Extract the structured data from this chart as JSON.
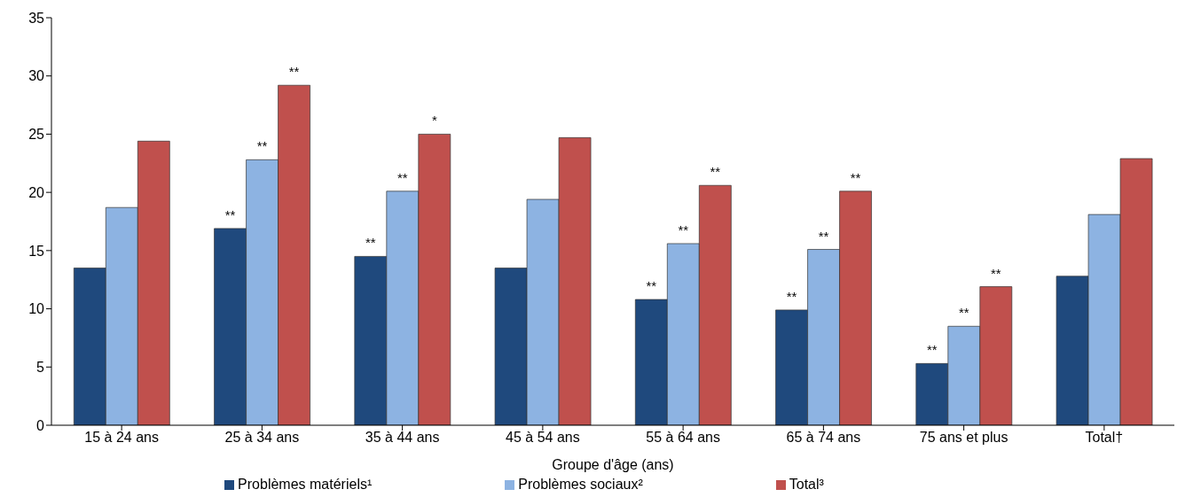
{
  "chart_data": {
    "type": "bar",
    "xlabel": "Groupe d'âge (ans)",
    "categories": [
      "15 à 24 ans",
      "25 à 34 ans",
      "35 à 44 ans",
      "45 à 54 ans",
      "55 à 64 ans",
      "65 à 74 ans",
      "75 ans et plus",
      "Total†"
    ],
    "series": [
      {
        "name": "Problèmes matériels¹",
        "color": "#1f497d",
        "values": [
          13.5,
          16.9,
          14.5,
          13.5,
          10.8,
          9.9,
          5.3,
          12.8
        ],
        "value_labels": [
          null,
          "**",
          "**",
          null,
          "**",
          "**",
          "**",
          null
        ]
      },
      {
        "name": "Problèmes sociaux²",
        "color": "#8db3e2",
        "values": [
          18.7,
          22.8,
          20.1,
          19.4,
          15.6,
          15.1,
          8.5,
          18.1
        ],
        "value_labels": [
          null,
          "**",
          "**",
          null,
          "**",
          "**",
          "**",
          null
        ]
      },
      {
        "name": "Total³",
        "color": "#c0504d",
        "values": [
          24.4,
          29.2,
          25.0,
          24.7,
          20.6,
          20.1,
          11.9,
          22.9
        ],
        "value_labels": [
          null,
          "**",
          "*",
          null,
          "**",
          "**",
          "**",
          null
        ]
      }
    ],
    "ylim": [
      0,
      35
    ],
    "yticks": [
      0,
      5,
      10,
      15,
      20,
      25,
      30,
      35
    ],
    "grid": false,
    "legend": "bottom"
  }
}
